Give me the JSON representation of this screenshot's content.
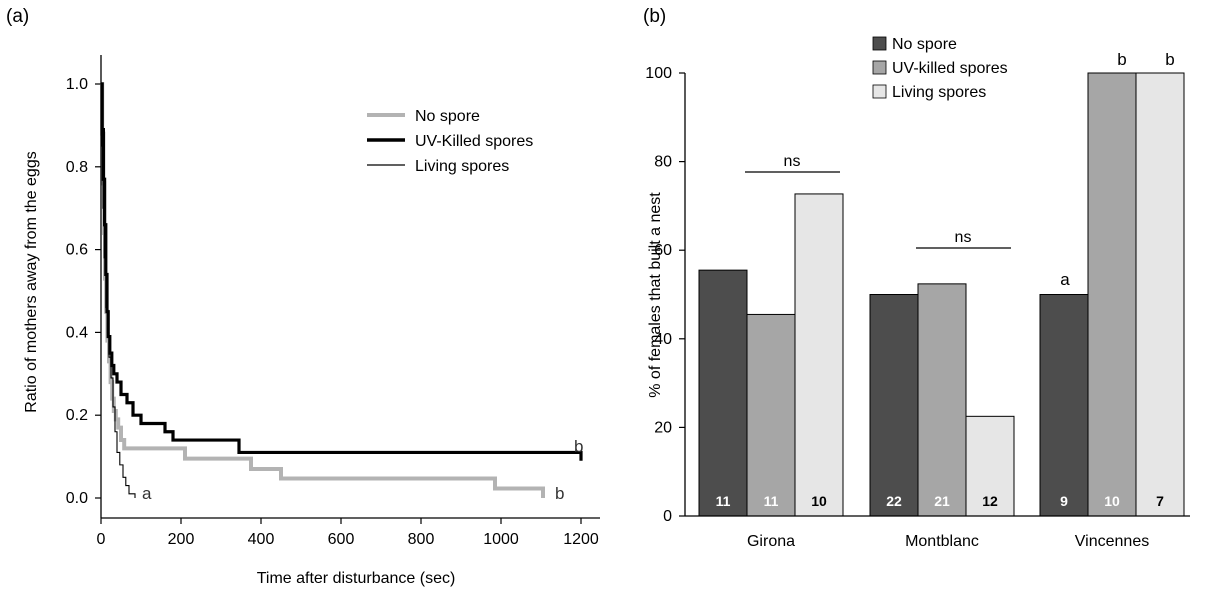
{
  "panel_a": {
    "label": "(a)",
    "legend": [
      "No spore",
      "UV-Killed spores",
      "Living spores"
    ],
    "letters": {
      "no_spore": "b",
      "uv_killed": "b",
      "living": "a"
    }
  },
  "panel_b": {
    "label": "(b)",
    "legend": [
      "No spore",
      "UV-killed spores",
      "Living spores"
    ],
    "ns_labels": [
      "ns",
      "ns"
    ],
    "letters": [
      "a",
      "b",
      "b"
    ]
  },
  "colors": {
    "no_spore_line": "#b3b3b3",
    "uv_killed_line": "#000000",
    "living_line": "#000000",
    "bar_no_spore": "#4d4d4d",
    "bar_uv_killed": "#a6a6a6",
    "bar_living": "#e6e6e6"
  },
  "chart_data": [
    {
      "type": "line",
      "title": "",
      "xlabel": "Time after disturbance (sec)",
      "ylabel": "Ratio of mothers away from the eggs",
      "xlim": [
        0,
        1200
      ],
      "ylim": [
        0,
        1.0
      ],
      "xticks": [
        "0",
        "200",
        "400",
        "600",
        "800",
        "1000",
        "1200"
      ],
      "yticks": [
        "0.0",
        "0.2",
        "0.4",
        "0.6",
        "0.8",
        "1.0"
      ],
      "legend_position": "top-right",
      "series": [
        {
          "name": "No spore",
          "x": [
            0,
            3,
            6,
            8,
            10,
            13,
            16,
            20,
            24,
            28,
            32,
            37,
            43,
            50,
            58,
            66,
            110,
            210,
            375,
            450,
            985,
            1105
          ],
          "y": [
            1.0,
            0.88,
            0.76,
            0.64,
            0.53,
            0.45,
            0.38,
            0.33,
            0.28,
            0.24,
            0.21,
            0.19,
            0.17,
            0.14,
            0.12,
            0.12,
            0.12,
            0.095,
            0.07,
            0.047,
            0.023,
            0.0
          ]
        },
        {
          "name": "UV-Killed spores",
          "x": [
            0,
            3,
            6,
            9,
            12,
            15,
            18,
            22,
            27,
            32,
            40,
            50,
            65,
            80,
            100,
            160,
            180,
            345,
            1200
          ],
          "y": [
            1.0,
            0.89,
            0.77,
            0.66,
            0.54,
            0.45,
            0.39,
            0.35,
            0.32,
            0.3,
            0.28,
            0.25,
            0.23,
            0.2,
            0.18,
            0.16,
            0.14,
            0.11,
            0.09
          ]
        },
        {
          "name": "Living spores",
          "x": [
            0,
            2,
            5,
            8,
            12,
            16,
            20,
            25,
            30,
            35,
            40,
            47,
            55,
            62,
            70,
            85
          ],
          "y": [
            1.0,
            0.85,
            0.7,
            0.58,
            0.46,
            0.4,
            0.34,
            0.29,
            0.22,
            0.16,
            0.11,
            0.08,
            0.05,
            0.03,
            0.01,
            0.0
          ]
        }
      ]
    },
    {
      "type": "bar",
      "title": "",
      "xlabel": "",
      "ylabel": "% of females that built a nest",
      "ylim": [
        0,
        100
      ],
      "yticks": [
        "0",
        "20",
        "40",
        "60",
        "80",
        "100"
      ],
      "categories": [
        "Girona",
        "Montblanc",
        "Vincennes"
      ],
      "legend_position": "top",
      "series": [
        {
          "name": "No spore",
          "values": [
            55.5,
            50,
            50
          ],
          "n": [
            "11",
            "22",
            "9"
          ]
        },
        {
          "name": "UV-killed spores",
          "values": [
            45.5,
            52.4,
            100
          ],
          "n": [
            "11",
            "21",
            "10"
          ]
        },
        {
          "name": "Living spores",
          "values": [
            72.7,
            22.5,
            100
          ],
          "n": [
            "10",
            "12",
            "7"
          ]
        }
      ]
    }
  ]
}
